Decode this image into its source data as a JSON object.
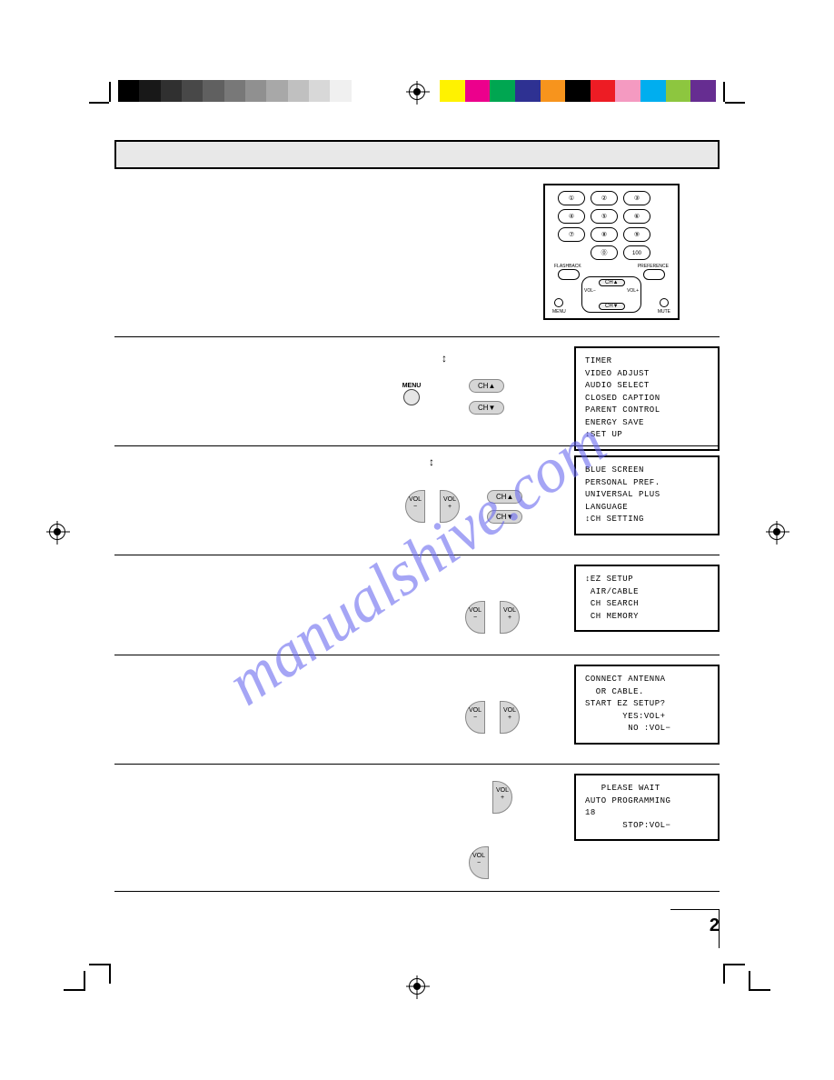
{
  "print_registration": {
    "gray_ramp_colors": [
      "#000000",
      "#181818",
      "#303030",
      "#484848",
      "#606060",
      "#787878",
      "#909090",
      "#a8a8a8",
      "#c0c0c0",
      "#d8d8d8",
      "#f0f0f0",
      "#ffffff"
    ],
    "color_bar_colors": [
      "#fff200",
      "#ec008c",
      "#00a651",
      "#2e3192",
      "#f7941d",
      "#000000",
      "#ed1c24",
      "#f49ac1",
      "#00aeef",
      "#8dc63f",
      "#662d91"
    ]
  },
  "watermark_text": "manualshive.com",
  "remote_keys": [
    "1",
    "2",
    "3",
    "4",
    "5",
    "6",
    "7",
    "8",
    "9",
    "0",
    "100"
  ],
  "remote_labels": {
    "flashback": "FLASHBACK",
    "preference": "PREFERENCE",
    "menu": "MENU",
    "mute": "MUTE",
    "ch_up": "CH▲",
    "ch_dn": "CH▼",
    "vol_up": "VOL+",
    "vol_dn": "VOL−"
  },
  "osd1": {
    "lines": [
      "TIMER",
      "VIDEO ADJUST",
      "AUDIO SELECT",
      "CLOSED CAPTION",
      "PARENT CONTROL",
      "ENERGY SAVE",
      "↕SET UP"
    ]
  },
  "osd2": {
    "lines": [
      "BLUE SCREEN",
      "PERSONAL PREF.",
      "UNIVERSAL PLUS",
      "LANGUAGE",
      "↕CH SETTING"
    ]
  },
  "osd3": {
    "lines": [
      "↕EZ SETUP",
      " AIR/CABLE",
      " CH SEARCH",
      " CH MEMORY"
    ]
  },
  "osd4": {
    "lines": [
      "CONNECT ANTENNA",
      "  OR CABLE.",
      "",
      "START EZ SETUP?",
      "",
      "       YES:VOL+",
      "        NO :VOL−"
    ]
  },
  "osd5": {
    "lines": [
      "   PLEASE WAIT",
      "",
      "AUTO PROGRAMMING",
      "",
      "18",
      "       STOP:VOL−"
    ]
  },
  "buttons": {
    "ch_up": "CH▲",
    "ch_dn": "CH▼",
    "vol_minus_top": "VOL",
    "vol_minus_bot": "−",
    "vol_plus_top": "VOL",
    "vol_plus_bot": "+",
    "menu": "MENU"
  },
  "page_number": "2",
  "arrow_symbol": "↕"
}
